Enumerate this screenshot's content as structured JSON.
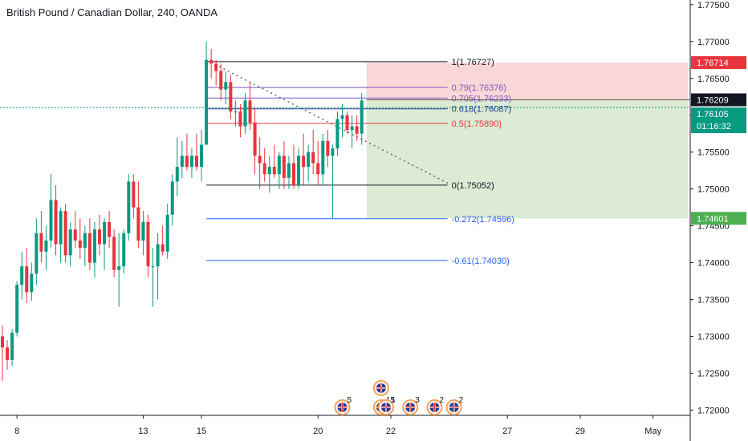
{
  "title": "British Pound / Canadian Dollar, 240, OANDA",
  "colors": {
    "up": "#089981",
    "down": "#e8343c",
    "axis_text": "#131722",
    "grid_line": "#131722",
    "profit_zone": "#dcebd3",
    "loss_zone": "#fbd6d6"
  },
  "chart_data": {
    "type": "candlestick",
    "ylim": [
      1.7195,
      1.7752
    ],
    "y_ticks": [
      "1.77500",
      "1.77000",
      "1.76500",
      "1.76000",
      "1.75500",
      "1.75000",
      "1.74500",
      "1.74000",
      "1.73500",
      "1.73000",
      "1.72500",
      "1.72000"
    ],
    "x_ticks": [
      {
        "label": "8",
        "index": 3
      },
      {
        "label": "13",
        "index": 29
      },
      {
        "label": "15",
        "index": 41
      },
      {
        "label": "20",
        "index": 65
      },
      {
        "label": "22",
        "index": 80
      },
      {
        "label": "27",
        "index": 104
      },
      {
        "label": "29",
        "index": 119
      },
      {
        "label": "May",
        "index": 134
      }
    ],
    "candles": [
      {
        "o": 1.73,
        "h": 1.7315,
        "l": 1.724,
        "c": 1.7285
      },
      {
        "o": 1.7285,
        "h": 1.7295,
        "l": 1.7255,
        "c": 1.7268
      },
      {
        "o": 1.7268,
        "h": 1.731,
        "l": 1.726,
        "c": 1.7305
      },
      {
        "o": 1.7305,
        "h": 1.7375,
        "l": 1.73,
        "c": 1.737
      },
      {
        "o": 1.737,
        "h": 1.7415,
        "l": 1.735,
        "c": 1.7395
      },
      {
        "o": 1.7395,
        "h": 1.742,
        "l": 1.7345,
        "c": 1.736
      },
      {
        "o": 1.736,
        "h": 1.74,
        "l": 1.7348,
        "c": 1.7385
      },
      {
        "o": 1.7385,
        "h": 1.746,
        "l": 1.737,
        "c": 1.744
      },
      {
        "o": 1.744,
        "h": 1.747,
        "l": 1.74,
        "c": 1.7415
      },
      {
        "o": 1.7415,
        "h": 1.745,
        "l": 1.739,
        "c": 1.743
      },
      {
        "o": 1.743,
        "h": 1.752,
        "l": 1.742,
        "c": 1.7485
      },
      {
        "o": 1.7485,
        "h": 1.7505,
        "l": 1.741,
        "c": 1.7425
      },
      {
        "o": 1.7425,
        "h": 1.7475,
        "l": 1.74,
        "c": 1.747
      },
      {
        "o": 1.747,
        "h": 1.748,
        "l": 1.74,
        "c": 1.741
      },
      {
        "o": 1.741,
        "h": 1.7455,
        "l": 1.7395,
        "c": 1.7445
      },
      {
        "o": 1.7445,
        "h": 1.747,
        "l": 1.742,
        "c": 1.743
      },
      {
        "o": 1.743,
        "h": 1.746,
        "l": 1.7405,
        "c": 1.742
      },
      {
        "o": 1.742,
        "h": 1.745,
        "l": 1.7395,
        "c": 1.744
      },
      {
        "o": 1.744,
        "h": 1.746,
        "l": 1.739,
        "c": 1.74
      },
      {
        "o": 1.74,
        "h": 1.7455,
        "l": 1.738,
        "c": 1.7445
      },
      {
        "o": 1.7445,
        "h": 1.7465,
        "l": 1.741,
        "c": 1.7425
      },
      {
        "o": 1.7425,
        "h": 1.746,
        "l": 1.739,
        "c": 1.7455
      },
      {
        "o": 1.7455,
        "h": 1.747,
        "l": 1.742,
        "c": 1.7435
      },
      {
        "o": 1.7435,
        "h": 1.7445,
        "l": 1.738,
        "c": 1.739
      },
      {
        "o": 1.739,
        "h": 1.744,
        "l": 1.734,
        "c": 1.7395
      },
      {
        "o": 1.7395,
        "h": 1.7445,
        "l": 1.7385,
        "c": 1.744
      },
      {
        "o": 1.744,
        "h": 1.752,
        "l": 1.743,
        "c": 1.751
      },
      {
        "o": 1.751,
        "h": 1.752,
        "l": 1.746,
        "c": 1.7475
      },
      {
        "o": 1.7475,
        "h": 1.751,
        "l": 1.742,
        "c": 1.743
      },
      {
        "o": 1.743,
        "h": 1.747,
        "l": 1.741,
        "c": 1.7455
      },
      {
        "o": 1.7455,
        "h": 1.7465,
        "l": 1.738,
        "c": 1.7395
      },
      {
        "o": 1.7395,
        "h": 1.742,
        "l": 1.734,
        "c": 1.7395
      },
      {
        "o": 1.7395,
        "h": 1.744,
        "l": 1.735,
        "c": 1.7425
      },
      {
        "o": 1.7425,
        "h": 1.745,
        "l": 1.741,
        "c": 1.7415
      },
      {
        "o": 1.7415,
        "h": 1.748,
        "l": 1.7405,
        "c": 1.7465
      },
      {
        "o": 1.7465,
        "h": 1.752,
        "l": 1.745,
        "c": 1.751
      },
      {
        "o": 1.751,
        "h": 1.757,
        "l": 1.749,
        "c": 1.753
      },
      {
        "o": 1.753,
        "h": 1.7565,
        "l": 1.7515,
        "c": 1.7545
      },
      {
        "o": 1.7545,
        "h": 1.7575,
        "l": 1.7525,
        "c": 1.753
      },
      {
        "o": 1.753,
        "h": 1.7555,
        "l": 1.7515,
        "c": 1.7545
      },
      {
        "o": 1.7545,
        "h": 1.7575,
        "l": 1.7525,
        "c": 1.753
      },
      {
        "o": 1.753,
        "h": 1.758,
        "l": 1.751,
        "c": 1.756
      },
      {
        "o": 1.756,
        "h": 1.77,
        "l": 1.756,
        "c": 1.7675
      },
      {
        "o": 1.7675,
        "h": 1.769,
        "l": 1.765,
        "c": 1.767
      },
      {
        "o": 1.767,
        "h": 1.7675,
        "l": 1.764,
        "c": 1.766
      },
      {
        "o": 1.766,
        "h": 1.767,
        "l": 1.762,
        "c": 1.7635
      },
      {
        "o": 1.7635,
        "h": 1.766,
        "l": 1.7615,
        "c": 1.7645
      },
      {
        "o": 1.7645,
        "h": 1.7655,
        "l": 1.7595,
        "c": 1.7605
      },
      {
        "o": 1.7605,
        "h": 1.762,
        "l": 1.7585,
        "c": 1.7605
      },
      {
        "o": 1.7605,
        "h": 1.7615,
        "l": 1.757,
        "c": 1.7585
      },
      {
        "o": 1.7585,
        "h": 1.763,
        "l": 1.7575,
        "c": 1.762
      },
      {
        "o": 1.762,
        "h": 1.7645,
        "l": 1.758,
        "c": 1.759
      },
      {
        "o": 1.759,
        "h": 1.761,
        "l": 1.752,
        "c": 1.7545
      },
      {
        "o": 1.7545,
        "h": 1.757,
        "l": 1.75,
        "c": 1.7535
      },
      {
        "o": 1.7535,
        "h": 1.7555,
        "l": 1.751,
        "c": 1.752
      },
      {
        "o": 1.752,
        "h": 1.7545,
        "l": 1.7495,
        "c": 1.753
      },
      {
        "o": 1.753,
        "h": 1.756,
        "l": 1.7515,
        "c": 1.752
      },
      {
        "o": 1.752,
        "h": 1.755,
        "l": 1.75,
        "c": 1.7545
      },
      {
        "o": 1.7545,
        "h": 1.7565,
        "l": 1.75,
        "c": 1.7515
      },
      {
        "o": 1.7515,
        "h": 1.7545,
        "l": 1.75,
        "c": 1.7535
      },
      {
        "o": 1.7535,
        "h": 1.756,
        "l": 1.75,
        "c": 1.7505
      },
      {
        "o": 1.7505,
        "h": 1.7555,
        "l": 1.75,
        "c": 1.7545
      },
      {
        "o": 1.7545,
        "h": 1.7575,
        "l": 1.7505,
        "c": 1.753
      },
      {
        "o": 1.753,
        "h": 1.756,
        "l": 1.751,
        "c": 1.755
      },
      {
        "o": 1.755,
        "h": 1.758,
        "l": 1.752,
        "c": 1.7535
      },
      {
        "o": 1.7535,
        "h": 1.7565,
        "l": 1.7505,
        "c": 1.752
      },
      {
        "o": 1.752,
        "h": 1.7575,
        "l": 1.7505,
        "c": 1.7565
      },
      {
        "o": 1.7565,
        "h": 1.758,
        "l": 1.753,
        "c": 1.7545
      },
      {
        "o": 1.7545,
        "h": 1.756,
        "l": 1.746,
        "c": 1.7555
      },
      {
        "o": 1.7555,
        "h": 1.7605,
        "l": 1.7545,
        "c": 1.7595
      },
      {
        "o": 1.7595,
        "h": 1.7615,
        "l": 1.757,
        "c": 1.76
      },
      {
        "o": 1.76,
        "h": 1.7605,
        "l": 1.7575,
        "c": 1.758
      },
      {
        "o": 1.758,
        "h": 1.76,
        "l": 1.7555,
        "c": 1.7585
      },
      {
        "o": 1.7585,
        "h": 1.76,
        "l": 1.7565,
        "c": 1.7575
      },
      {
        "o": 1.7575,
        "h": 1.763,
        "l": 1.756,
        "c": 1.762
      }
    ],
    "fib_levels": [
      {
        "ratio": "1",
        "value": 1.76727,
        "label": "1(1.76727)",
        "color": "#131722"
      },
      {
        "ratio": "0.79",
        "value": 1.76376,
        "label": "0.79(1.76376)",
        "color": "#7e57c2"
      },
      {
        "ratio": "0.705",
        "value": 1.76233,
        "label": "0.705(1.76233)",
        "color": "#7e57c2"
      },
      {
        "ratio": "0.618",
        "value": 1.76087,
        "label": "0.618(1.76087)",
        "color": "#1e3a8a"
      },
      {
        "ratio": "0.5",
        "value": 1.7589,
        "label": "0.5(1.75890)",
        "color": "#e8343c"
      },
      {
        "ratio": "0",
        "value": 1.75052,
        "label": "0(1.75052)",
        "color": "#131722"
      },
      {
        "ratio": "-0.272",
        "value": 1.74596,
        "label": "-0.272(1.74596)",
        "color": "#2962ff"
      },
      {
        "ratio": "-0.61",
        "value": 1.7403,
        "label": "-0.61(1.74030)",
        "color": "#2962ff"
      }
    ],
    "fib_start_index": 42,
    "fib_end_index": 92,
    "trend_line": {
      "from": {
        "index": 42,
        "value": 1.7675
      },
      "to": {
        "index": 92,
        "value": 1.7507
      }
    },
    "position": {
      "start_index": 75,
      "stop": 1.76714,
      "entry": 1.76209,
      "target": 1.74601
    },
    "current_price": {
      "value": 1.76105,
      "label": "1.76105",
      "countdown": "01:16:32"
    },
    "price_tags": [
      {
        "value": 1.76714,
        "label": "1.76714",
        "bg": "#e8343c",
        "fg": "#ffffff"
      },
      {
        "value": 1.76209,
        "label": "1.76209",
        "bg": "#131722",
        "fg": "#ffffff"
      },
      {
        "value": 1.74601,
        "label": "1.74601",
        "bg": "#4caf50",
        "fg": "#ffffff"
      }
    ],
    "events": [
      {
        "index": 70,
        "count": "5",
        "stack": 1
      },
      {
        "index": 78,
        "count": "15",
        "stack": 2
      },
      {
        "index": 79,
        "count": "1",
        "stack": 1
      },
      {
        "index": 84,
        "count": "3",
        "stack": 1
      },
      {
        "index": 89,
        "count": "2",
        "stack": 1
      },
      {
        "index": 93,
        "count": "2",
        "stack": 1
      }
    ]
  }
}
